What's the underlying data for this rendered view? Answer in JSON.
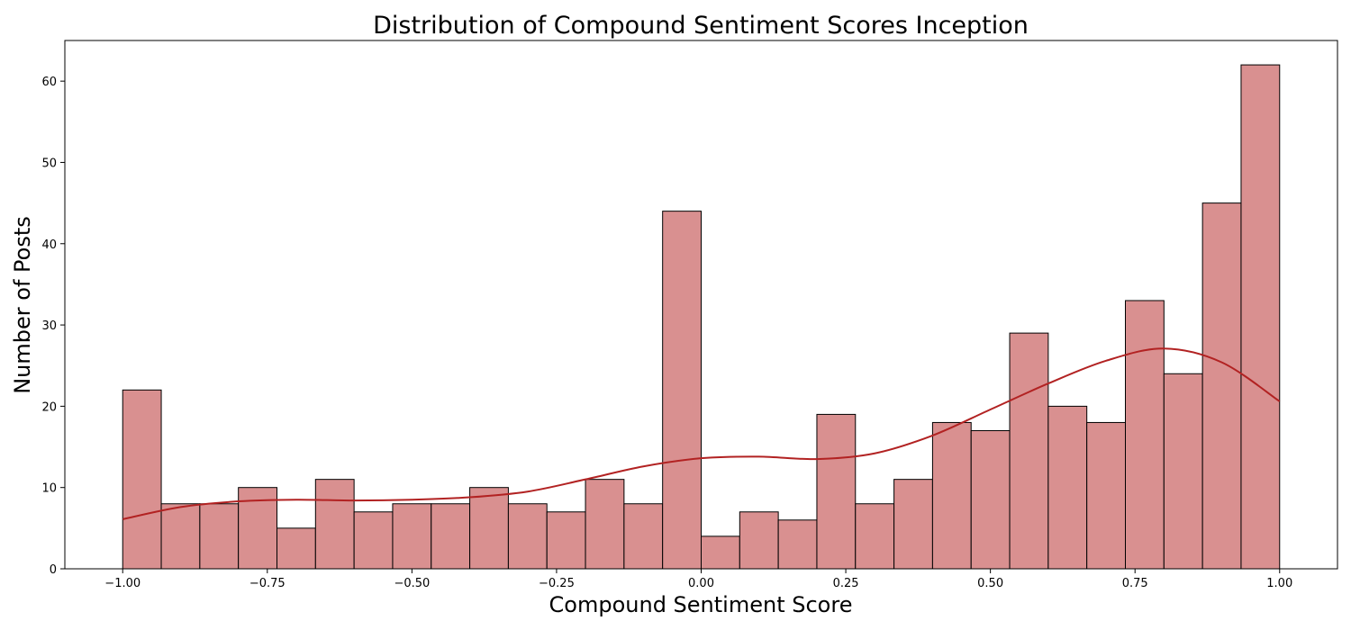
{
  "chart_data": {
    "type": "bar",
    "title": "Distribution of Compound Sentiment Scores Inception",
    "xlabel": "Compound Sentiment Score",
    "ylabel": "Number of Posts",
    "xlim": [
      -1.1,
      1.1
    ],
    "ylim": [
      0,
      65
    ],
    "bin_range": [
      -1.0,
      1.0
    ],
    "bins": 30,
    "values": [
      22,
      8,
      8,
      10,
      5,
      11,
      7,
      8,
      8,
      10,
      8,
      7,
      11,
      8,
      44,
      4,
      7,
      6,
      19,
      8,
      11,
      18,
      17,
      29,
      20,
      18,
      33,
      24,
      45,
      62
    ],
    "x_ticks": [
      -1.0,
      -0.75,
      -0.5,
      -0.25,
      0.0,
      0.25,
      0.5,
      0.75,
      1.0
    ],
    "x_tick_labels": [
      "−1.00",
      "−0.75",
      "−0.50",
      "−0.25",
      "0.00",
      "0.25",
      "0.50",
      "0.75",
      "1.00"
    ],
    "y_ticks": [
      0,
      10,
      20,
      30,
      40,
      50,
      60
    ],
    "y_tick_labels": [
      "0",
      "10",
      "20",
      "30",
      "40",
      "50",
      "60"
    ],
    "kde": {
      "x": [
        -1.0,
        -0.9,
        -0.8,
        -0.7,
        -0.6,
        -0.5,
        -0.4,
        -0.3,
        -0.2,
        -0.1,
        0.0,
        0.1,
        0.2,
        0.3,
        0.4,
        0.5,
        0.6,
        0.7,
        0.8,
        0.9,
        1.0
      ],
      "y": [
        6.1,
        7.6,
        8.3,
        8.5,
        8.4,
        8.5,
        8.8,
        9.5,
        11.0,
        12.6,
        13.6,
        13.8,
        13.5,
        14.2,
        16.4,
        19.6,
        22.8,
        25.6,
        27.1,
        25.4,
        20.6
      ]
    },
    "colors": {
      "bar_fill": "#d99090",
      "bar_stroke": "#000000",
      "kde_line": "#b22222"
    },
    "grid": false,
    "legend": "none"
  }
}
